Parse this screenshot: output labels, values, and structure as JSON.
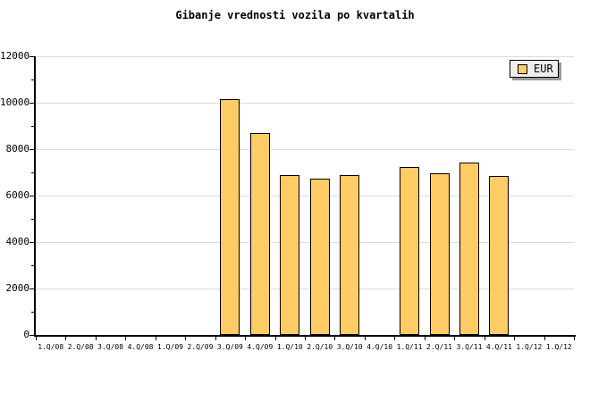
{
  "title": "Gibanje vrednosti vozila po kvartalih",
  "legend": {
    "label": "EUR",
    "swatch_color": "#FFCC66"
  },
  "colors": {
    "bar_fill": "#FFCC66",
    "bar_border": "#000000",
    "grid": "#DCDCDC",
    "axis": "#000000",
    "legend_bg": "#EEEEEE",
    "legend_shadow": "#999999",
    "background": "#FFFFFF"
  },
  "chart_data": {
    "type": "bar",
    "title": "Gibanje vrednosti vozila po kvartalih",
    "categories": [
      "1.Q/08",
      "2.Q/08",
      "3.Q/08",
      "4.Q/08",
      "1.Q/09",
      "2.Q/09",
      "3.Q/09",
      "4.Q/09",
      "1.Q/10",
      "2.Q/10",
      "3.Q/10",
      "4.Q/10",
      "1.Q/11",
      "2.Q/11",
      "3.Q/11",
      "4.Q/11",
      "1.Q/12",
      "1.Q/12"
    ],
    "series": [
      {
        "name": "EUR",
        "values": [
          null,
          null,
          null,
          null,
          null,
          null,
          10150,
          8700,
          6900,
          6750,
          6900,
          null,
          7250,
          6950,
          7440,
          6850,
          null,
          null
        ]
      }
    ],
    "xlabel": "",
    "ylabel": "",
    "ylim": [
      0,
      12000
    ],
    "ytick_interval": 2000,
    "ytick_minor_interval": 1000,
    "ytick_labels": [
      "0",
      "2000",
      "4000",
      "6000",
      "8000",
      "10000",
      "12000"
    ],
    "grid": "horizontal-major",
    "legend_position": "top-right"
  }
}
